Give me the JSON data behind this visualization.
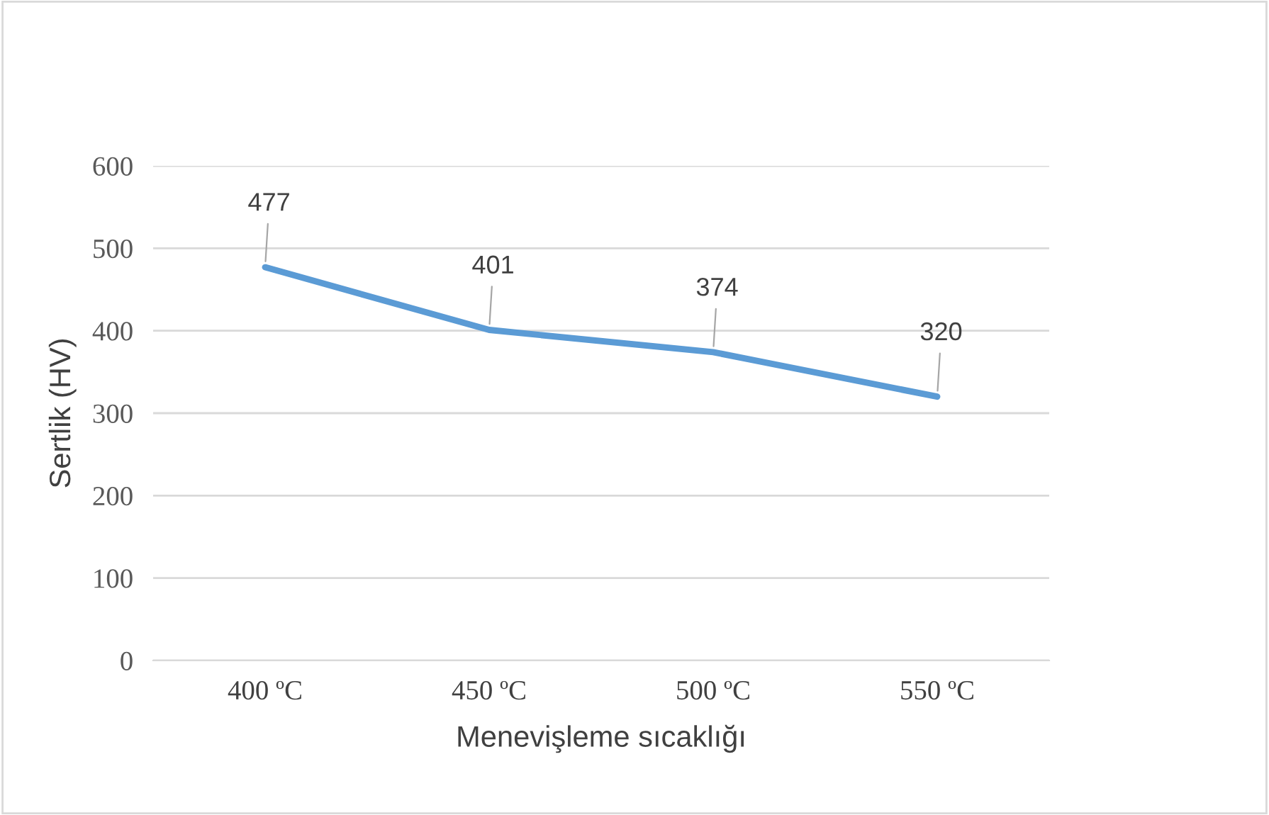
{
  "chart_data": {
    "type": "line",
    "xlabel": "Menevişleme sıcaklığı",
    "ylabel": "Sertlik (HV)",
    "categories": [
      "400 ºC",
      "450 ºC",
      "500 ºC",
      "550 ºC"
    ],
    "series": [
      {
        "color": "#5b9bd5",
        "values": [
          477,
          401,
          374,
          320
        ]
      }
    ],
    "ylim": [
      0,
      600
    ],
    "yticks": [
      0,
      100,
      200,
      300,
      400,
      500,
      600
    ],
    "grid": "y",
    "data_labels": true,
    "marker": "none",
    "line_style": "solid"
  }
}
